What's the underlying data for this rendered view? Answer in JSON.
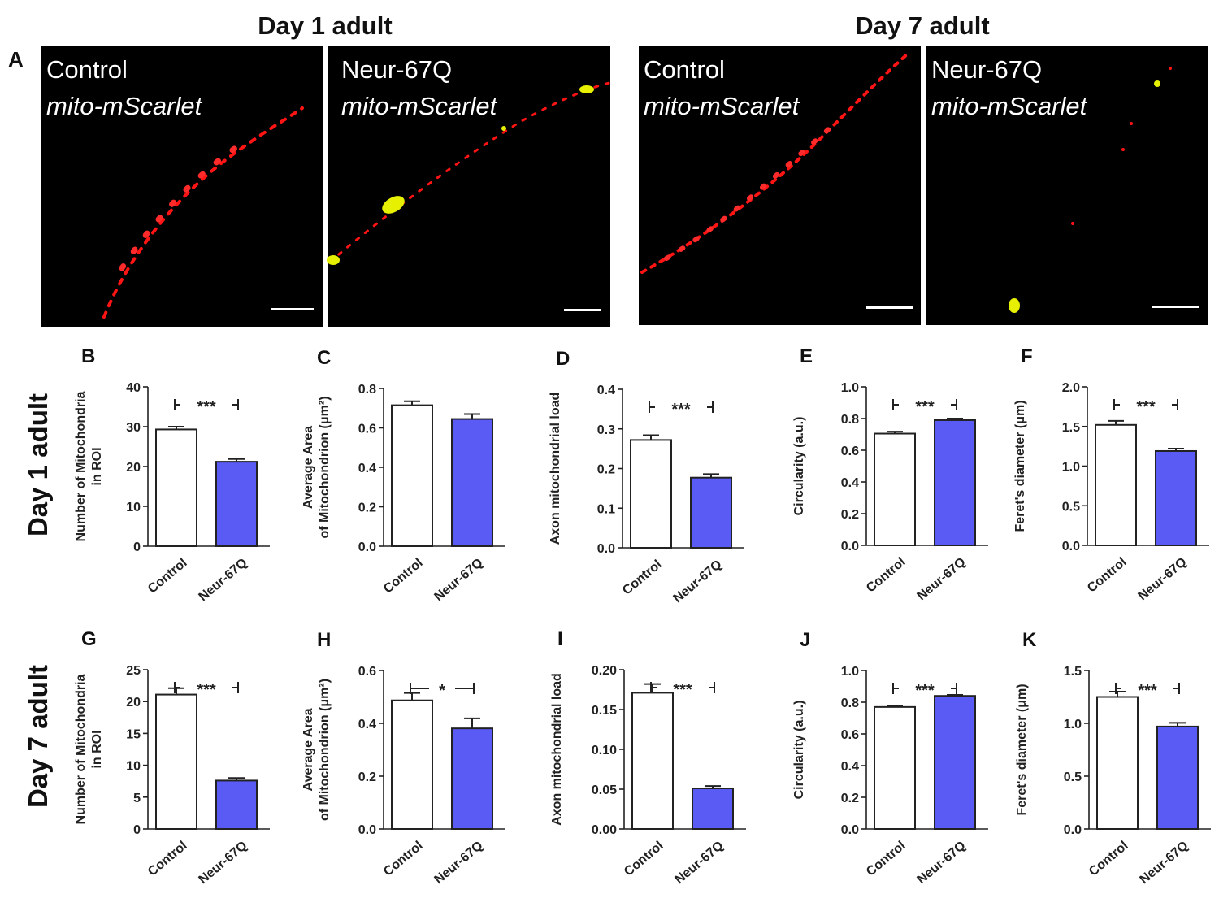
{
  "figure": {
    "headings": [
      "Day 1 adult",
      "Day 7 adult"
    ],
    "panel_a_letter": "A",
    "micrographs": [
      {
        "group": "Control",
        "marker": "mito-mScarlet"
      },
      {
        "group": "Neur-67Q",
        "marker": "mito-mScarlet"
      },
      {
        "group": "Control",
        "marker": "mito-mScarlet"
      },
      {
        "group": "Neur-67Q",
        "marker": "mito-mScarlet"
      }
    ],
    "row_labels": [
      "Day 1 adult",
      "Day 7 adult"
    ],
    "colors": {
      "control": "#ffffff",
      "neur": "#5a5af5",
      "micro_bg": "#000000",
      "mito_red": "#ff1414",
      "mito_yellow": "#e6f000"
    }
  },
  "chart_data": [
    {
      "panel": "B",
      "type": "bar",
      "categories": [
        "Control",
        "Neur-67Q"
      ],
      "values": [
        29.3,
        21.2
      ],
      "errors": [
        0.7,
        0.7
      ],
      "ylabel": [
        "Number of Mitochondria",
        "in ROI"
      ],
      "ylim": [
        0,
        40
      ],
      "ticks": [
        "0",
        "10",
        "20",
        "30",
        "40"
      ],
      "significance": "***"
    },
    {
      "panel": "C",
      "type": "bar",
      "categories": [
        "Control",
        "Neur-67Q"
      ],
      "values": [
        0.715,
        0.645
      ],
      "errors": [
        0.02,
        0.025
      ],
      "ylabel": [
        "Average Area",
        "of Mitochondrion (μm²)"
      ],
      "ylim": [
        0,
        0.8
      ],
      "ticks": [
        "0.0",
        "0.2",
        "0.4",
        "0.6",
        "0.8"
      ],
      "significance": ""
    },
    {
      "panel": "D",
      "type": "bar",
      "categories": [
        "Control",
        "Neur-67Q"
      ],
      "values": [
        0.272,
        0.177
      ],
      "errors": [
        0.012,
        0.009
      ],
      "ylabel": [
        "Axon mitochondrial load"
      ],
      "ylim": [
        0,
        0.4
      ],
      "ticks": [
        "0.0",
        "0.1",
        "0.2",
        "0.3",
        "0.4"
      ],
      "significance": "***"
    },
    {
      "panel": "E",
      "type": "bar",
      "categories": [
        "Control",
        "Neur-67Q"
      ],
      "values": [
        0.705,
        0.79
      ],
      "errors": [
        0.012,
        0.01
      ],
      "ylabel": [
        "Circularity (a.u.)"
      ],
      "ylim": [
        0,
        1.0
      ],
      "ticks": [
        "0.0",
        "0.2",
        "0.4",
        "0.6",
        "0.8",
        "1.0"
      ],
      "significance": "***"
    },
    {
      "panel": "F",
      "type": "bar",
      "categories": [
        "Control",
        "Neur-67Q"
      ],
      "values": [
        1.52,
        1.19
      ],
      "errors": [
        0.05,
        0.03
      ],
      "ylabel": [
        "Feret's diameter (μm)"
      ],
      "ylim": [
        0,
        2.0
      ],
      "ticks": [
        "0.0",
        "0.5",
        "1.0",
        "1.5",
        "2.0"
      ],
      "significance": "***"
    },
    {
      "panel": "G",
      "type": "bar",
      "categories": [
        "Control",
        "Neur-67Q"
      ],
      "values": [
        21.1,
        7.6
      ],
      "errors": [
        1.0,
        0.4
      ],
      "ylabel": [
        "Number of Mitochondria",
        "in ROI"
      ],
      "ylim": [
        0,
        25
      ],
      "ticks": [
        "0",
        "5",
        "10",
        "15",
        "20",
        "25"
      ],
      "significance": "***"
    },
    {
      "panel": "H",
      "type": "bar",
      "categories": [
        "Control",
        "Neur-67Q"
      ],
      "values": [
        0.487,
        0.381
      ],
      "errors": [
        0.028,
        0.038
      ],
      "ylabel": [
        "Average Area",
        "of Mitochondrion (μm²)"
      ],
      "ylim": [
        0,
        0.6
      ],
      "ticks": [
        "0.0",
        "0.2",
        "0.4",
        "0.6"
      ],
      "significance": "*"
    },
    {
      "panel": "I",
      "type": "bar",
      "categories": [
        "Control",
        "Neur-67Q"
      ],
      "values": [
        0.171,
        0.051
      ],
      "errors": [
        0.011,
        0.003
      ],
      "ylabel": [
        "Axon mitochondrial load"
      ],
      "ylim": [
        0,
        0.2
      ],
      "ticks": [
        "0.00",
        "0.05",
        "0.10",
        "0.15",
        "0.20"
      ],
      "significance": "***"
    },
    {
      "panel": "J",
      "type": "bar",
      "categories": [
        "Control",
        "Neur-67Q"
      ],
      "values": [
        0.77,
        0.84
      ],
      "errors": [
        0.008,
        0.006
      ],
      "ylabel": [
        "Circularity (a.u.)"
      ],
      "ylim": [
        0,
        1.0
      ],
      "ticks": [
        "0.0",
        "0.2",
        "0.4",
        "0.6",
        "0.8",
        "1.0"
      ],
      "significance": "***"
    },
    {
      "panel": "K",
      "type": "bar",
      "categories": [
        "Control",
        "Neur-67Q"
      ],
      "values": [
        1.25,
        0.97
      ],
      "errors": [
        0.05,
        0.035
      ],
      "ylabel": [
        "Feret's diameter (μm)"
      ],
      "ylim": [
        0,
        1.5
      ],
      "ticks": [
        "0.0",
        "0.5",
        "1.0",
        "1.5"
      ],
      "significance": "***"
    }
  ]
}
